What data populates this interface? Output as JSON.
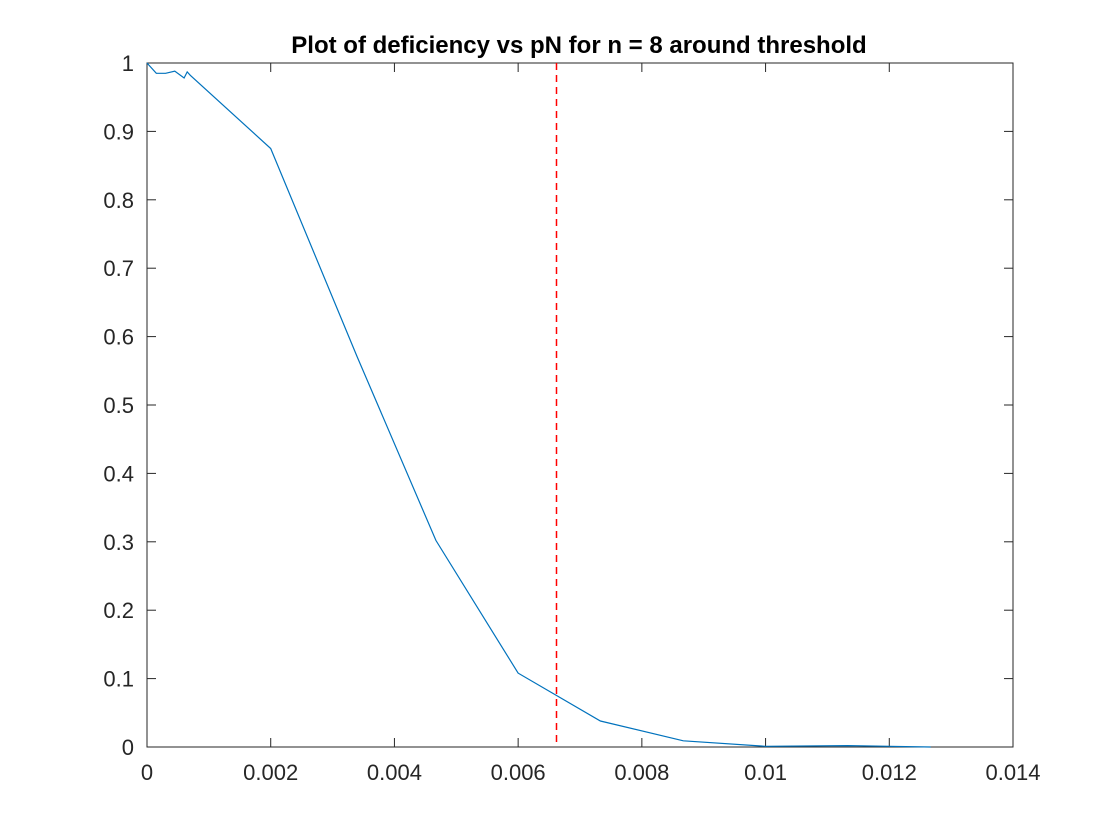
{
  "chart_data": {
    "type": "line",
    "title": "Plot of deficiency vs pN for n = 8 around threshold",
    "xlabel": "",
    "ylabel": "",
    "xlim": [
      0,
      0.014
    ],
    "ylim": [
      0,
      1
    ],
    "xticks": [
      "0",
      "0.002",
      "0.004",
      "0.006",
      "0.008",
      "0.01",
      "0.012",
      "0.014"
    ],
    "yticks": [
      "0",
      "0.1",
      "0.2",
      "0.3",
      "0.4",
      "0.5",
      "0.6",
      "0.7",
      "0.8",
      "0.9",
      "1"
    ],
    "grid": false,
    "series": [
      {
        "color": "#0072BD",
        "x": [
          0,
          0.00015,
          0.0003,
          0.00045,
          0.0006,
          0.00065,
          0.0007,
          0.002,
          0.0034,
          0.00467,
          0.006,
          0.00733,
          0.00867,
          0.01,
          0.01133,
          0.01267
        ],
        "y": [
          1.0,
          0.985,
          0.985,
          0.988,
          0.978,
          0.987,
          0.982,
          0.875,
          0.57,
          0.302,
          0.108,
          0.038,
          0.009,
          0.001,
          0.002,
          0.0
        ]
      }
    ],
    "annotations": [
      {
        "type": "vline",
        "x": 0.00662,
        "color": "#FF0000",
        "style": "dashed"
      }
    ]
  }
}
